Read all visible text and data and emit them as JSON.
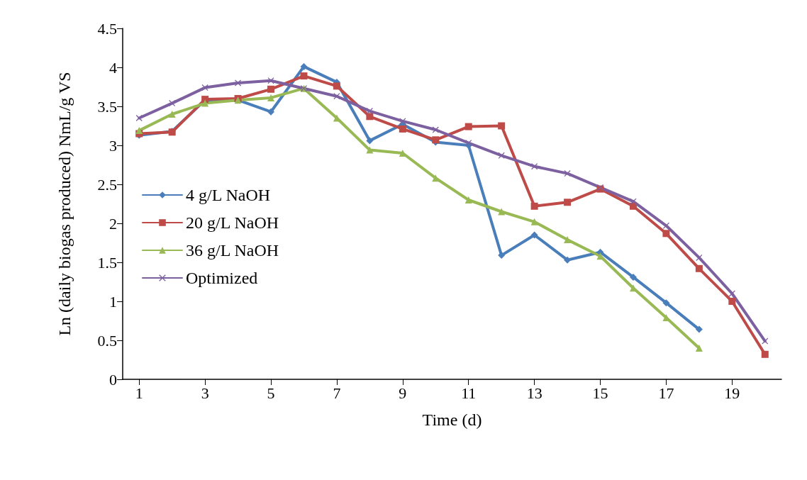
{
  "chart_data": {
    "type": "line",
    "xlabel": "Time (d)",
    "ylabel": "Ln (daily biogas produced) NmL/g VS",
    "x": [
      1,
      2,
      3,
      4,
      5,
      6,
      7,
      8,
      9,
      10,
      11,
      12,
      13,
      14,
      15,
      16,
      17,
      18,
      19,
      20
    ],
    "xlim": [
      0.5,
      20.5
    ],
    "xticks": [
      1,
      3,
      5,
      7,
      9,
      11,
      13,
      15,
      17,
      19
    ],
    "ylim": [
      0,
      4.5
    ],
    "yticks": [
      0,
      0.5,
      1,
      1.5,
      2,
      2.5,
      3,
      3.5,
      4,
      4.5
    ],
    "grid": false,
    "legend": "left",
    "series": [
      {
        "name": "4 g/L NaOH",
        "color": "#4a7ebb",
        "marker": "diamond",
        "values": [
          3.13,
          3.18,
          3.58,
          3.58,
          3.43,
          4.01,
          3.81,
          3.06,
          3.27,
          3.04,
          3.0,
          1.59,
          1.85,
          1.53,
          1.63,
          1.31,
          0.98,
          0.64,
          null,
          null
        ]
      },
      {
        "name": "20 g/L NaOH",
        "color": "#be4b48",
        "marker": "square",
        "values": [
          3.15,
          3.17,
          3.59,
          3.6,
          3.72,
          3.89,
          3.76,
          3.37,
          3.21,
          3.07,
          3.24,
          3.25,
          2.22,
          2.27,
          2.44,
          2.22,
          1.87,
          1.42,
          1.0,
          0.32
        ]
      },
      {
        "name": "36 g/L NaOH",
        "color": "#98b954",
        "marker": "triangle",
        "values": [
          3.19,
          3.4,
          3.54,
          3.58,
          3.61,
          3.73,
          3.35,
          2.94,
          2.9,
          2.58,
          2.3,
          2.15,
          2.02,
          1.79,
          1.58,
          1.17,
          0.79,
          0.4,
          null,
          null
        ]
      },
      {
        "name": "Optimized",
        "color": "#7d60a0",
        "marker": "cross",
        "values": [
          3.35,
          3.54,
          3.74,
          3.8,
          3.83,
          3.73,
          3.63,
          3.44,
          3.31,
          3.2,
          3.03,
          2.87,
          2.73,
          2.64,
          2.46,
          2.28,
          1.97,
          1.56,
          1.1,
          0.49
        ]
      }
    ]
  }
}
